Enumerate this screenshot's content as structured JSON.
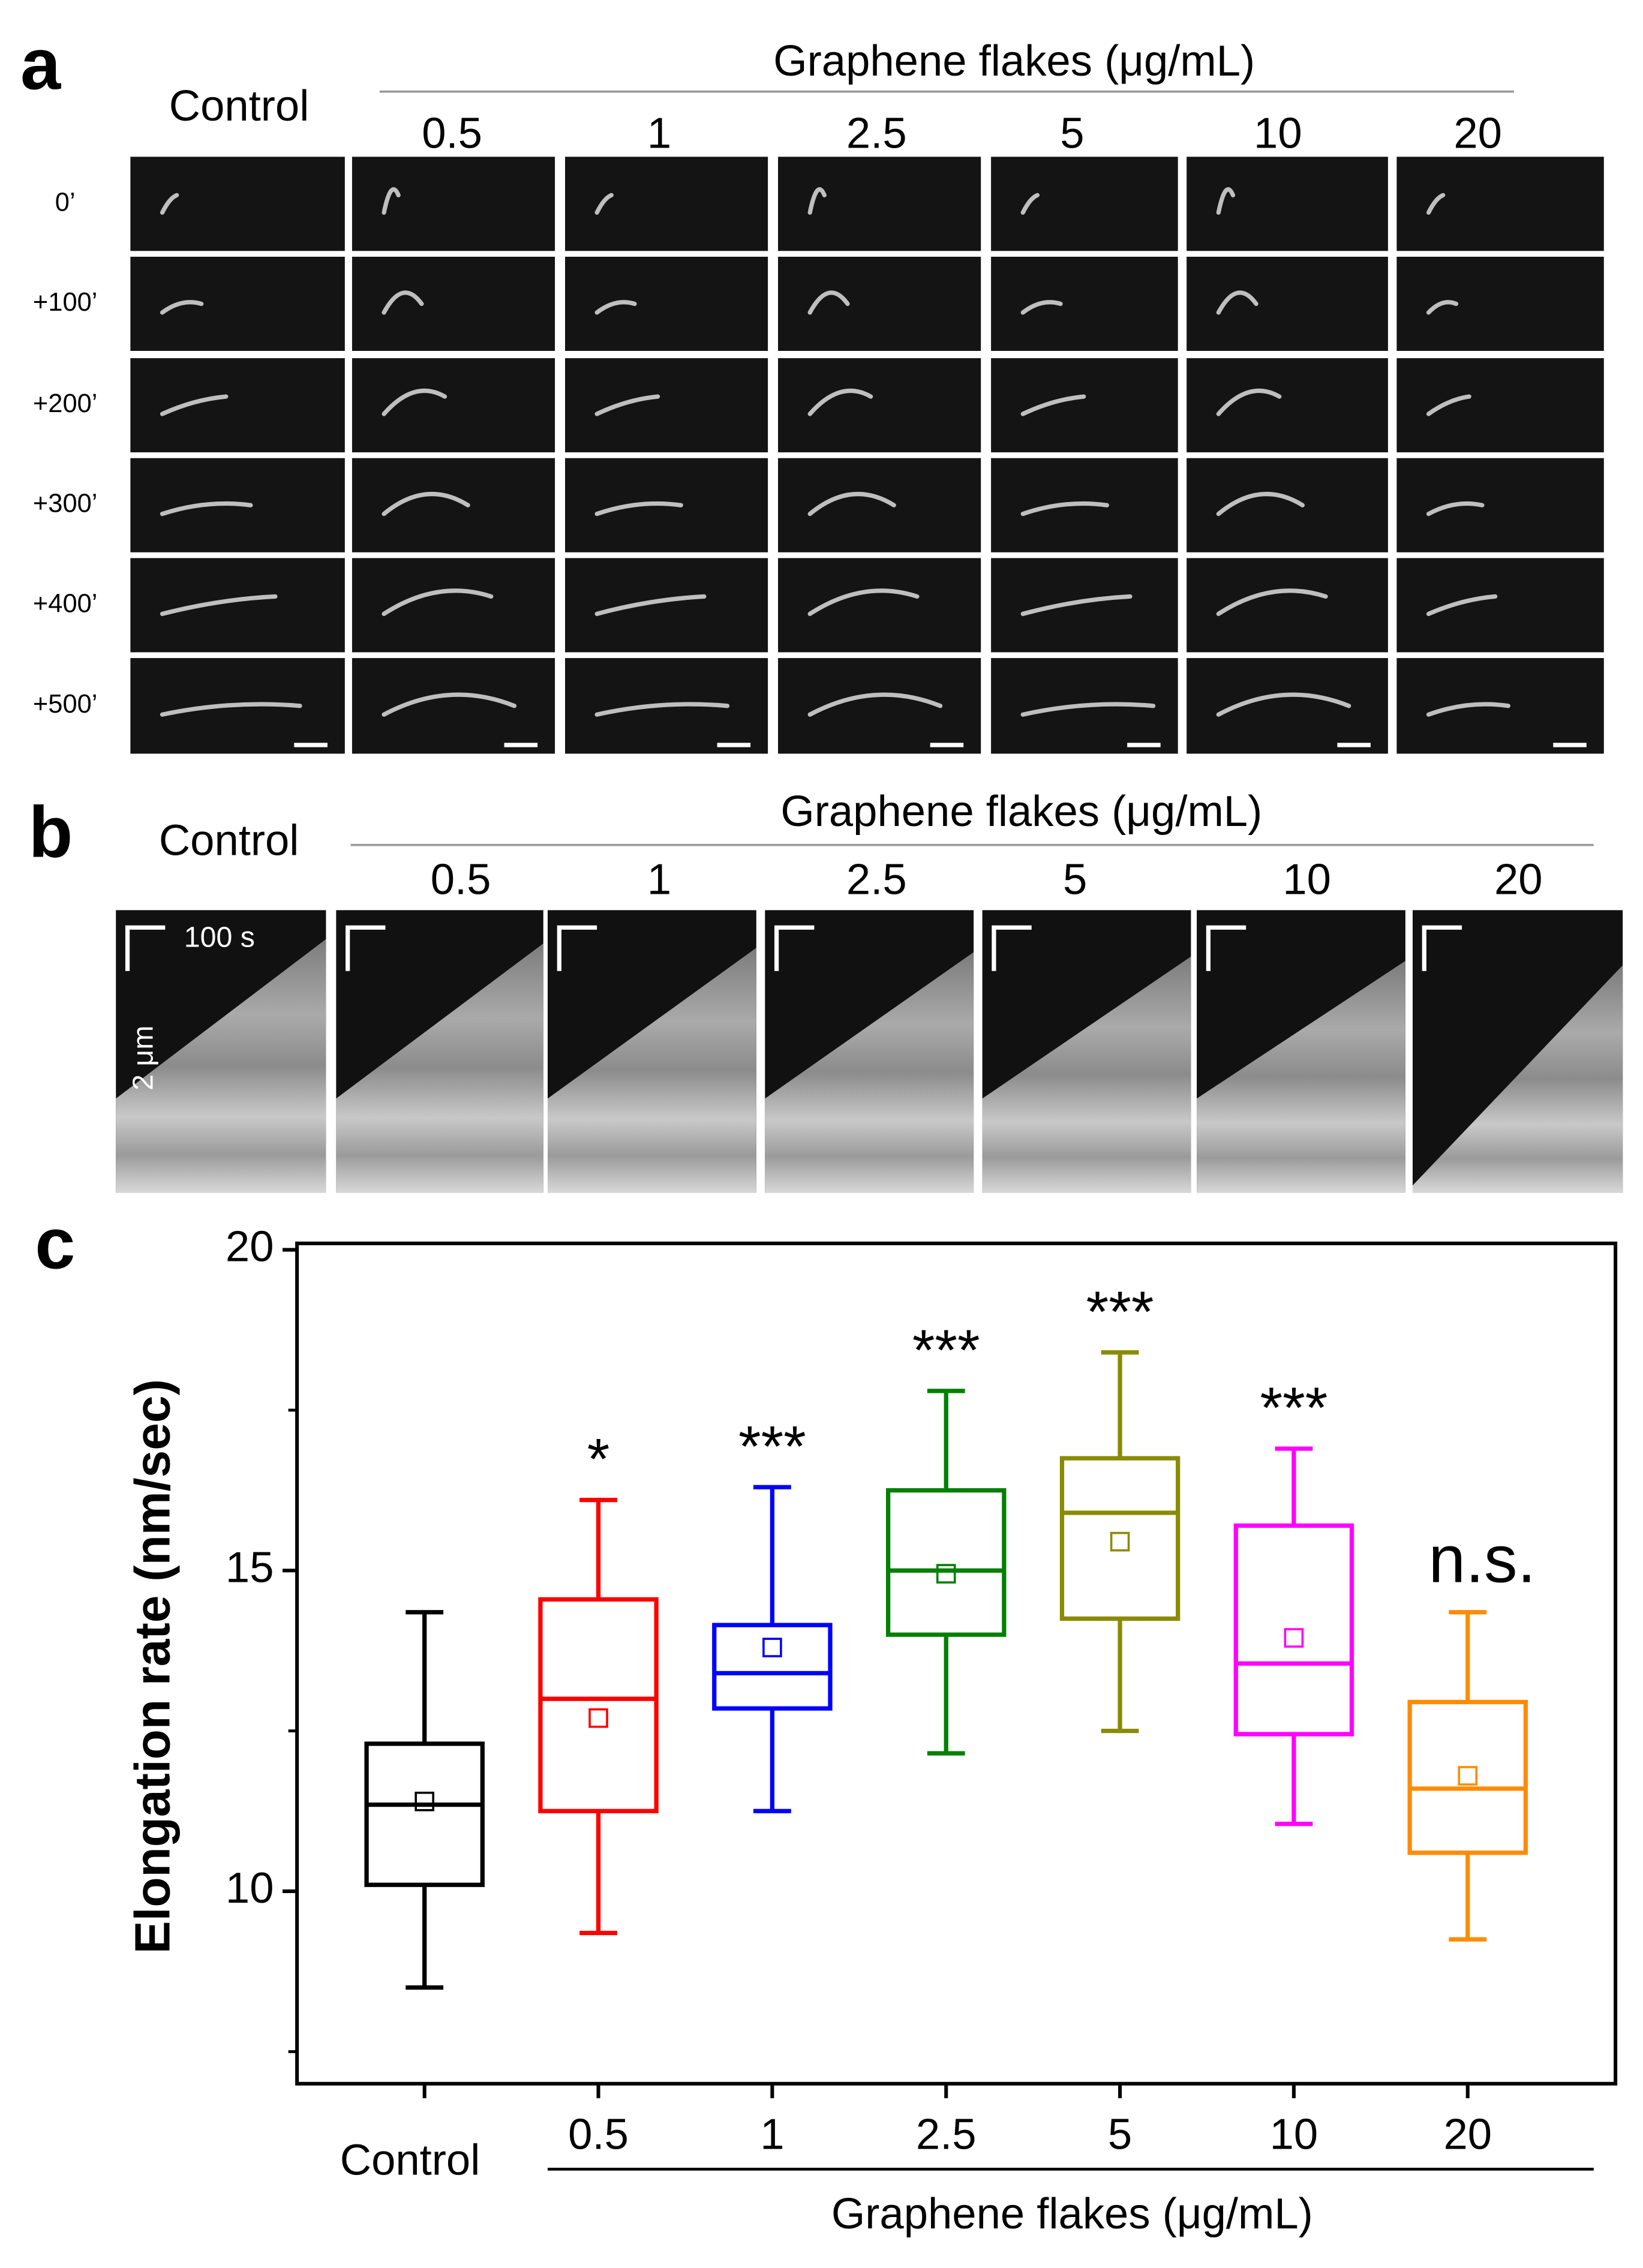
{
  "panels": {
    "a": {
      "label": "a",
      "control": "Control",
      "group_title": "Graphene flakes (μg/mL)",
      "columns": [
        "0.5",
        "1",
        "2.5",
        "5",
        "10",
        "20"
      ],
      "times": [
        "0’",
        "+100’",
        "+200’",
        "+300’",
        "+400’",
        "+500’"
      ]
    },
    "b": {
      "label": "b",
      "control": "Control",
      "group_title": "Graphene flakes (μg/mL)",
      "columns": [
        "0.5",
        "1",
        "2.5",
        "5",
        "10",
        "20"
      ],
      "time_scale": "100 s",
      "length_scale": "2 μm"
    }
  },
  "chart_data": {
    "type": "box",
    "panel_label": "c",
    "ylabel": "Elongation rate (nm/sec)",
    "group_label": "Graphene flakes (μg/mL)",
    "categories": [
      "Control",
      "0.5",
      "1",
      "2.5",
      "5",
      "10",
      "20"
    ],
    "colors": [
      "#000000",
      "#ff0000",
      "#0000ff",
      "#008000",
      "#8b8b00",
      "#ff00ff",
      "#ff8c00"
    ],
    "whisker_low": [
      8.5,
      9.35,
      11.25,
      12.15,
      12.5,
      11.05,
      9.25
    ],
    "q1": [
      10.1,
      11.25,
      12.85,
      14.0,
      14.25,
      12.45,
      10.6
    ],
    "median": [
      11.35,
      13.0,
      13.4,
      15.0,
      15.9,
      13.55,
      11.6
    ],
    "q3": [
      12.3,
      14.55,
      14.15,
      16.25,
      16.75,
      15.7,
      12.95
    ],
    "whisker_high": [
      14.35,
      16.1,
      16.3,
      17.8,
      18.4,
      16.9,
      14.35
    ],
    "mean": [
      11.4,
      12.7,
      13.8,
      14.95,
      15.45,
      13.95,
      11.8
    ],
    "annotations": [
      null,
      "*",
      "***",
      "***",
      "***",
      "***",
      "n.s."
    ],
    "ylim": [
      7,
      20.1
    ],
    "yticks": [
      10,
      15,
      20
    ],
    "minor_yticks": [
      7.5,
      12.5,
      17.5
    ]
  }
}
